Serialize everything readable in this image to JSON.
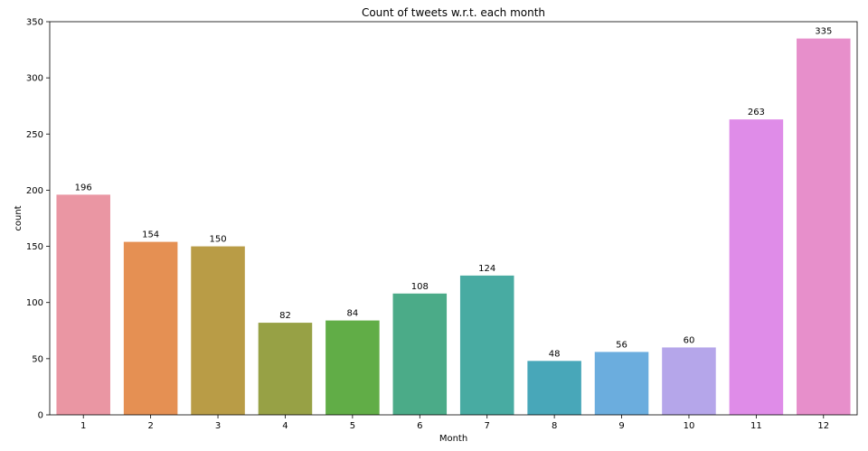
{
  "chart_data": {
    "type": "bar",
    "title": "Count of tweets w.r.t. each month",
    "xlabel": "Month",
    "ylabel": "count",
    "categories": [
      "1",
      "2",
      "3",
      "4",
      "5",
      "6",
      "7",
      "8",
      "9",
      "10",
      "11",
      "12"
    ],
    "values": [
      196,
      154,
      150,
      82,
      84,
      108,
      124,
      48,
      56,
      60,
      263,
      335
    ],
    "ylim": [
      0,
      350
    ],
    "yticks": [
      0,
      50,
      100,
      150,
      200,
      250,
      300,
      350
    ],
    "grid": false,
    "colors": [
      "#ea96a3",
      "#e59053",
      "#b99c46",
      "#97a145",
      "#61ad47",
      "#4bab88",
      "#48aba2",
      "#48a7b9",
      "#6badde",
      "#b5a6ea",
      "#df8ce8",
      "#e78fcb"
    ]
  }
}
